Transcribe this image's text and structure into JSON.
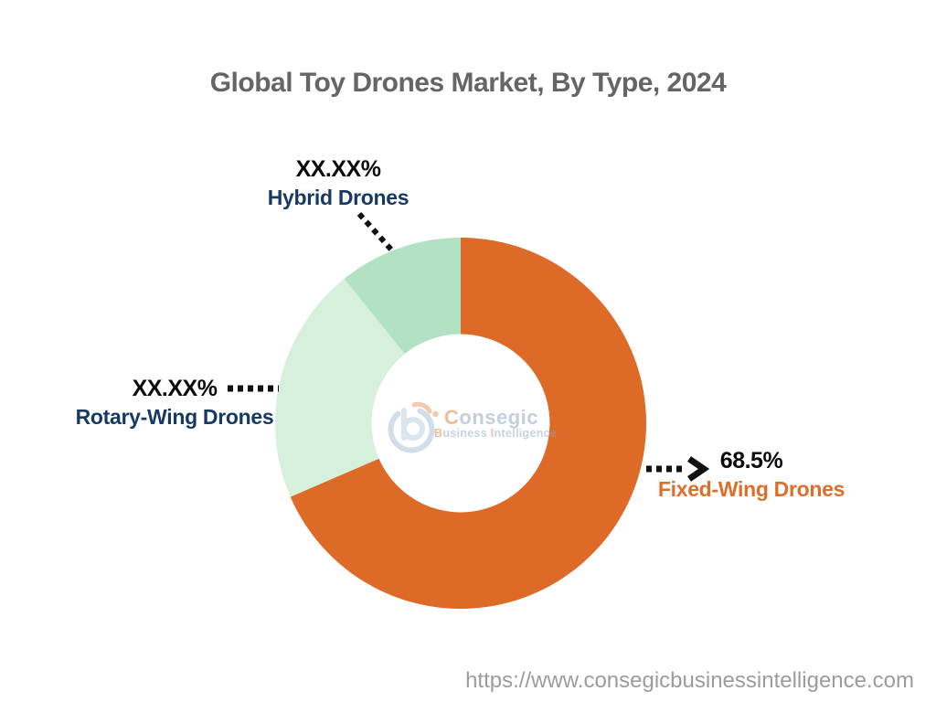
{
  "chart_data": {
    "type": "donut",
    "title": "Global Toy Drones Market, By Type, 2024",
    "start_angle_deg": 0,
    "direction": "clockwise",
    "inner_radius_ratio": 0.48,
    "legend": "none",
    "annotations": "callout value + category labels with black dotted leader lines",
    "slices": [
      {
        "label": "Fixed-Wing Drones",
        "value_label": "68.5%",
        "percent_est": 68.5,
        "color": "#DD6A27",
        "label_color": "#E06E2B"
      },
      {
        "label": "Rotary-Wing Drones",
        "value_label": "XX.XX%",
        "percent_est": 20.7,
        "color": "#D7F0DC",
        "label_color": "#173A63"
      },
      {
        "label": "Hybrid Drones",
        "value_label": "XX.XX%",
        "percent_est": 10.8,
        "color": "#B2E2C3",
        "label_color": "#173A63"
      }
    ]
  },
  "watermark": {
    "brand_initial": "C",
    "brand_rest": "onsegic",
    "tagline": [
      {
        "text": "B",
        "accent": true
      },
      {
        "text": "usiness ",
        "accent": false
      },
      {
        "text": "I",
        "accent": true
      },
      {
        "text": "ntelligence",
        "accent": false
      }
    ]
  },
  "footer": {
    "url": "https://www.consegicbusinessintelligence.com"
  },
  "colors": {
    "title_text": "#656565",
    "value_text": "#0c0c0c",
    "navy": "#173A63",
    "orange": "#DD6A27",
    "url_text": "#9C9C9C",
    "leader_line": "#111111",
    "background": "#ffffff"
  }
}
